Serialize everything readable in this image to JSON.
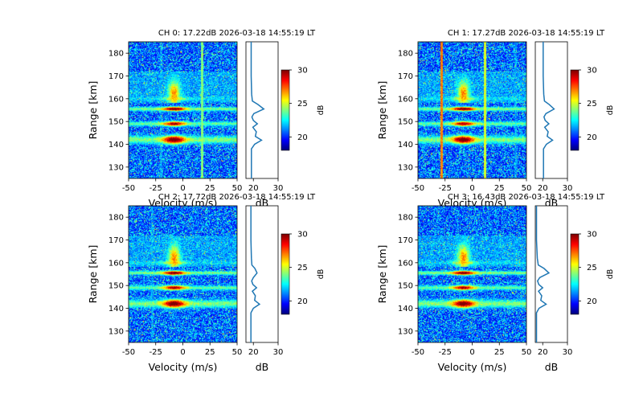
{
  "chart_data": [
    {
      "type": "heatmap",
      "title": "CH 0: 17.22dB 2026-03-18 14:55:19 LT",
      "xlabel": "Velocity (m/s)",
      "ylabel": "Range [km]",
      "xlim": [
        -50,
        50
      ],
      "ylim": [
        125,
        185
      ],
      "xticks": [
        "-50",
        "-25",
        "0",
        "25",
        "50"
      ],
      "yticks": [
        "130",
        "140",
        "150",
        "160",
        "170",
        "180"
      ],
      "echo_bands_km": [
        {
          "center": 142,
          "width": 6,
          "peak_db": 31
        },
        {
          "center": 149,
          "width": 3.5,
          "peak_db": 30
        },
        {
          "center": 155.5,
          "width": 3,
          "peak_db": 31
        },
        {
          "center": 160,
          "width": 4,
          "peak_db": 26
        }
      ],
      "interference_lines_ms": [
        {
          "v": 18,
          "db": 24
        },
        {
          "v": -20,
          "db": 21
        }
      ],
      "profile": {
        "xlabel": "dB",
        "xlim": [
          17,
          30
        ],
        "xticks": [
          "20",
          "30"
        ],
        "points": [
          [
            19.2,
            125
          ],
          [
            19.2,
            138
          ],
          [
            20.5,
            140
          ],
          [
            23.3,
            141.8
          ],
          [
            20.8,
            143.5
          ],
          [
            21.2,
            145.5
          ],
          [
            19.8,
            147.5
          ],
          [
            21.6,
            149
          ],
          [
            20,
            150.5
          ],
          [
            19.4,
            152
          ],
          [
            20.2,
            153.5
          ],
          [
            24.2,
            155.5
          ],
          [
            21.8,
            157.5
          ],
          [
            19.6,
            159
          ],
          [
            19.3,
            162
          ],
          [
            19.1,
            170
          ],
          [
            19.1,
            185
          ]
        ]
      },
      "colorbar": {
        "label": "dB",
        "range": [
          18,
          30
        ],
        "ticks": [
          "20",
          "25",
          "30"
        ]
      }
    },
    {
      "type": "heatmap",
      "title": "CH 1: 17.27dB 2026-03-18 14:55:19 LT",
      "xlabel": "Velocity (m/s)",
      "ylabel": "Range [km]",
      "xlim": [
        -50,
        50
      ],
      "ylim": [
        125,
        185
      ],
      "xticks": [
        "-50",
        "-25",
        "0",
        "25",
        "50"
      ],
      "yticks": [
        "130",
        "140",
        "150",
        "160",
        "170",
        "180"
      ],
      "echo_bands_km": [
        {
          "center": 142,
          "width": 6,
          "peak_db": 31
        },
        {
          "center": 149,
          "width": 3.5,
          "peak_db": 30
        },
        {
          "center": 155.5,
          "width": 3,
          "peak_db": 31
        },
        {
          "center": 160,
          "width": 4,
          "peak_db": 26
        }
      ],
      "interference_lines_ms": [
        {
          "v": -28,
          "db": 27
        },
        {
          "v": 12,
          "db": 25
        },
        {
          "v": 40,
          "db": 21
        }
      ],
      "profile": {
        "xlabel": "dB",
        "xlim": [
          17,
          30
        ],
        "xticks": [
          "20",
          "30"
        ],
        "points": [
          [
            20.3,
            125
          ],
          [
            20.3,
            138
          ],
          [
            21.5,
            140
          ],
          [
            24,
            141.8
          ],
          [
            21.8,
            143.5
          ],
          [
            22.2,
            145.5
          ],
          [
            20.8,
            147.5
          ],
          [
            22.5,
            149
          ],
          [
            21,
            150.5
          ],
          [
            20.5,
            152
          ],
          [
            21.3,
            153.5
          ],
          [
            24.6,
            155.5
          ],
          [
            22.6,
            157.5
          ],
          [
            20.7,
            159
          ],
          [
            20.4,
            162
          ],
          [
            20.2,
            170
          ],
          [
            20.2,
            185
          ]
        ]
      },
      "colorbar": {
        "label": "dB",
        "range": [
          18,
          30
        ],
        "ticks": [
          "20",
          "25",
          "30"
        ]
      }
    },
    {
      "type": "heatmap",
      "title": "CH 2: 17.72dB 2026-03-18 14:55:19 LT",
      "xlabel": "Velocity (m/s)",
      "ylabel": "Range [km]",
      "xlim": [
        -50,
        50
      ],
      "ylim": [
        125,
        185
      ],
      "xticks": [
        "-50",
        "-25",
        "0",
        "25",
        "50"
      ],
      "yticks": [
        "130",
        "140",
        "150",
        "160",
        "170",
        "180"
      ],
      "echo_bands_km": [
        {
          "center": 142,
          "width": 6,
          "peak_db": 31
        },
        {
          "center": 149,
          "width": 3.5,
          "peak_db": 30
        },
        {
          "center": 155.5,
          "width": 3,
          "peak_db": 31
        },
        {
          "center": 160,
          "width": 4,
          "peak_db": 26
        }
      ],
      "interference_lines_ms": [
        {
          "v": -28,
          "db": 21
        }
      ],
      "profile": {
        "xlabel": "dB",
        "xlim": [
          17,
          30
        ],
        "xticks": [
          "20",
          "30"
        ],
        "points": [
          [
            19,
            125
          ],
          [
            19,
            138
          ],
          [
            20,
            140
          ],
          [
            22.5,
            141.8
          ],
          [
            20.5,
            143.5
          ],
          [
            20.8,
            145.5
          ],
          [
            19.6,
            147.5
          ],
          [
            21.3,
            149
          ],
          [
            19.8,
            150.5
          ],
          [
            19.3,
            152
          ],
          [
            20,
            153.5
          ],
          [
            21.5,
            155.5
          ],
          [
            20.6,
            157.5
          ],
          [
            19.4,
            159
          ],
          [
            19.2,
            162
          ],
          [
            19,
            170
          ],
          [
            19,
            185
          ]
        ]
      },
      "colorbar": {
        "label": "dB",
        "range": [
          18,
          30
        ],
        "ticks": [
          "20",
          "25",
          "30"
        ]
      }
    },
    {
      "type": "heatmap",
      "title": "CH 3: 16.43dB 2026-03-18 14:55:19 LT",
      "xlabel": "Velocity (m/s)",
      "ylabel": "Range [km]",
      "xlim": [
        -50,
        50
      ],
      "ylim": [
        125,
        185
      ],
      "xticks": [
        "-50",
        "-25",
        "0",
        "25",
        "50"
      ],
      "yticks": [
        "130",
        "140",
        "150",
        "160",
        "170",
        "180"
      ],
      "echo_bands_km": [
        {
          "center": 142,
          "width": 6,
          "peak_db": 31
        },
        {
          "center": 149,
          "width": 3.5,
          "peak_db": 30
        },
        {
          "center": 155.5,
          "width": 3,
          "peak_db": 31
        },
        {
          "center": 160,
          "width": 4,
          "peak_db": 26
        }
      ],
      "interference_lines_ms": [],
      "profile": {
        "xlabel": "dB",
        "xlim": [
          17,
          30
        ],
        "xticks": [
          "20",
          "30"
        ],
        "points": [
          [
            17.5,
            125
          ],
          [
            17.5,
            138
          ],
          [
            18.5,
            140
          ],
          [
            21.4,
            141.8
          ],
          [
            19.2,
            143.5
          ],
          [
            19.6,
            145.5
          ],
          [
            18.3,
            147.5
          ],
          [
            20,
            149
          ],
          [
            18.4,
            150.5
          ],
          [
            17.9,
            152
          ],
          [
            18.8,
            153.5
          ],
          [
            22.5,
            155.5
          ],
          [
            20.5,
            157.5
          ],
          [
            18.2,
            159
          ],
          [
            17.8,
            162
          ],
          [
            17.5,
            170
          ],
          [
            17.5,
            185
          ]
        ]
      },
      "colorbar": {
        "label": "dB",
        "range": [
          18,
          30
        ],
        "ticks": [
          "20",
          "25",
          "30"
        ]
      }
    }
  ]
}
